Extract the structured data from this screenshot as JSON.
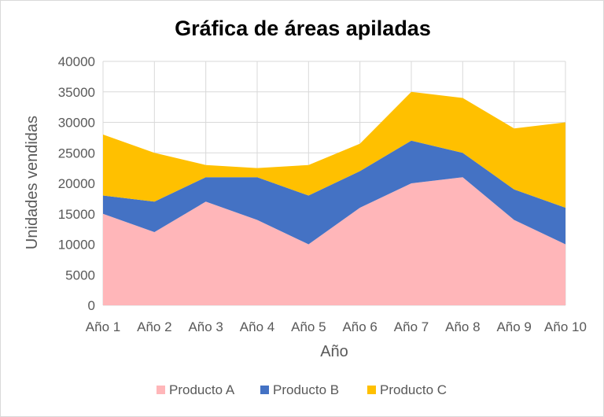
{
  "chart_data": {
    "type": "area",
    "stacked": true,
    "title": "Gráfica de áreas apiladas",
    "xlabel": "Año",
    "ylabel": "Unidades vendidas",
    "categories": [
      "Año 1",
      "Año 2",
      "Año 3",
      "Año 4",
      "Año 5",
      "Año 6",
      "Año 7",
      "Año 8",
      "Año 9",
      "Año 10"
    ],
    "ylim": [
      0,
      40000
    ],
    "yticks": [
      0,
      5000,
      10000,
      15000,
      20000,
      25000,
      30000,
      35000,
      40000
    ],
    "grid": true,
    "legend_position": "bottom",
    "series": [
      {
        "name": "Producto A",
        "color": "#ffb6b9",
        "values": [
          15000,
          12000,
          17000,
          14000,
          10000,
          16000,
          20000,
          21000,
          14000,
          10000
        ]
      },
      {
        "name": "Producto B",
        "color": "#4472c4",
        "values": [
          3000,
          5000,
          4000,
          7000,
          8000,
          6000,
          7000,
          4000,
          5000,
          6000
        ]
      },
      {
        "name": "Producto C",
        "color": "#ffc000",
        "values": [
          10000,
          8000,
          2000,
          1500,
          5000,
          4500,
          8000,
          9000,
          10000,
          14000
        ]
      }
    ]
  }
}
